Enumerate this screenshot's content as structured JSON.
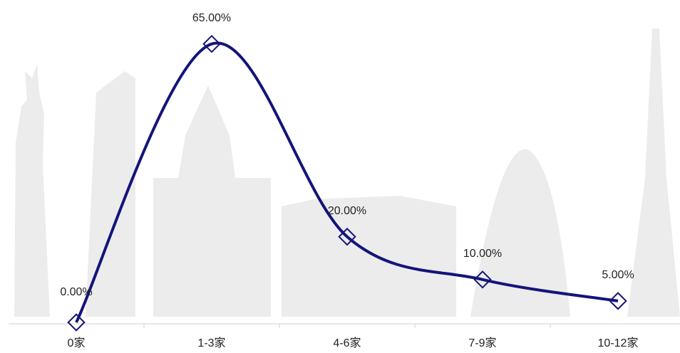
{
  "chart_data": {
    "type": "line",
    "categories": [
      "0家",
      "1-3家",
      "4-6家",
      "7-9家",
      "10-12家"
    ],
    "values": [
      0,
      65,
      20,
      10,
      5
    ],
    "value_labels": [
      "0.00%",
      "65.00%",
      "20.00%",
      "10.00%",
      "5.00%"
    ],
    "color": "#14147a"
  }
}
